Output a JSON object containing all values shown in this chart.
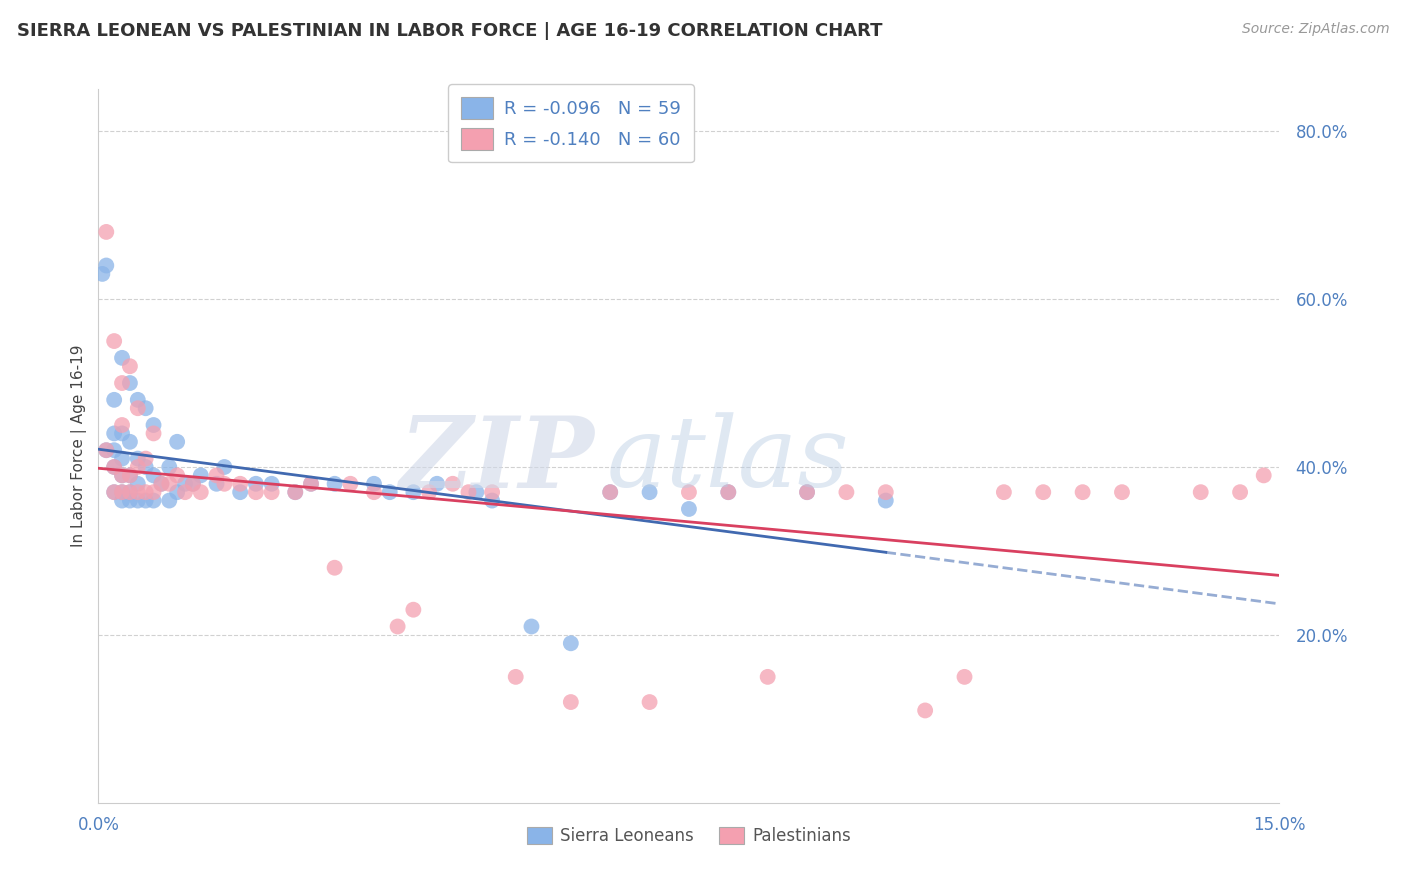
{
  "title": "SIERRA LEONEAN VS PALESTINIAN IN LABOR FORCE | AGE 16-19 CORRELATION CHART",
  "source": "Source: ZipAtlas.com",
  "ylabel": "In Labor Force | Age 16-19",
  "xlim": [
    0.0,
    0.15
  ],
  "ylim": [
    0.0,
    0.85
  ],
  "xticks": [
    0.0,
    0.15
  ],
  "xticklabels": [
    "0.0%",
    "15.0%"
  ],
  "yticks": [
    0.2,
    0.4,
    0.6,
    0.8
  ],
  "yticklabels": [
    "20.0%",
    "40.0%",
    "60.0%",
    "80.0%"
  ],
  "sierra_R": -0.096,
  "sierra_N": 59,
  "palestinian_R": -0.14,
  "palestinian_N": 60,
  "legend_labels": [
    "Sierra Leoneans",
    "Palestinians"
  ],
  "sierra_color": "#8ab4e8",
  "palestinian_color": "#f4a0b0",
  "sierra_line_color": "#4169b0",
  "palestinian_line_color": "#d94060",
  "grid_color": "#cccccc",
  "background_color": "#ffffff",
  "tick_color": "#5080c0",
  "sierra_x": [
    0.0005,
    0.001,
    0.001,
    0.002,
    0.002,
    0.002,
    0.002,
    0.002,
    0.003,
    0.003,
    0.003,
    0.003,
    0.003,
    0.003,
    0.004,
    0.004,
    0.004,
    0.004,
    0.004,
    0.005,
    0.005,
    0.005,
    0.005,
    0.006,
    0.006,
    0.006,
    0.007,
    0.007,
    0.007,
    0.008,
    0.009,
    0.009,
    0.01,
    0.01,
    0.011,
    0.012,
    0.013,
    0.015,
    0.016,
    0.018,
    0.02,
    0.022,
    0.025,
    0.027,
    0.03,
    0.035,
    0.037,
    0.04,
    0.043,
    0.048,
    0.05,
    0.055,
    0.06,
    0.065,
    0.07,
    0.075,
    0.08,
    0.09,
    0.1
  ],
  "sierra_y": [
    0.63,
    0.64,
    0.42,
    0.37,
    0.4,
    0.42,
    0.44,
    0.48,
    0.36,
    0.37,
    0.39,
    0.41,
    0.44,
    0.53,
    0.36,
    0.37,
    0.39,
    0.43,
    0.5,
    0.36,
    0.38,
    0.41,
    0.48,
    0.36,
    0.4,
    0.47,
    0.36,
    0.39,
    0.45,
    0.38,
    0.36,
    0.4,
    0.37,
    0.43,
    0.38,
    0.38,
    0.39,
    0.38,
    0.4,
    0.37,
    0.38,
    0.38,
    0.37,
    0.38,
    0.38,
    0.38,
    0.37,
    0.37,
    0.38,
    0.37,
    0.36,
    0.21,
    0.19,
    0.37,
    0.37,
    0.35,
    0.37,
    0.37,
    0.36
  ],
  "palestinian_x": [
    0.001,
    0.001,
    0.002,
    0.002,
    0.002,
    0.003,
    0.003,
    0.003,
    0.003,
    0.004,
    0.004,
    0.004,
    0.005,
    0.005,
    0.005,
    0.006,
    0.006,
    0.007,
    0.007,
    0.008,
    0.009,
    0.01,
    0.011,
    0.012,
    0.013,
    0.015,
    0.016,
    0.018,
    0.02,
    0.022,
    0.025,
    0.027,
    0.03,
    0.032,
    0.035,
    0.038,
    0.04,
    0.042,
    0.045,
    0.047,
    0.05,
    0.053,
    0.06,
    0.065,
    0.07,
    0.075,
    0.08,
    0.085,
    0.09,
    0.095,
    0.1,
    0.105,
    0.11,
    0.115,
    0.12,
    0.125,
    0.13,
    0.14,
    0.145,
    0.148
  ],
  "palestinian_y": [
    0.68,
    0.42,
    0.37,
    0.4,
    0.55,
    0.37,
    0.39,
    0.45,
    0.5,
    0.37,
    0.39,
    0.52,
    0.37,
    0.4,
    0.47,
    0.37,
    0.41,
    0.37,
    0.44,
    0.38,
    0.38,
    0.39,
    0.37,
    0.38,
    0.37,
    0.39,
    0.38,
    0.38,
    0.37,
    0.37,
    0.37,
    0.38,
    0.28,
    0.38,
    0.37,
    0.21,
    0.23,
    0.37,
    0.38,
    0.37,
    0.37,
    0.15,
    0.12,
    0.37,
    0.12,
    0.37,
    0.37,
    0.15,
    0.37,
    0.37,
    0.37,
    0.11,
    0.15,
    0.37,
    0.37,
    0.37,
    0.37,
    0.37,
    0.37,
    0.39
  ]
}
